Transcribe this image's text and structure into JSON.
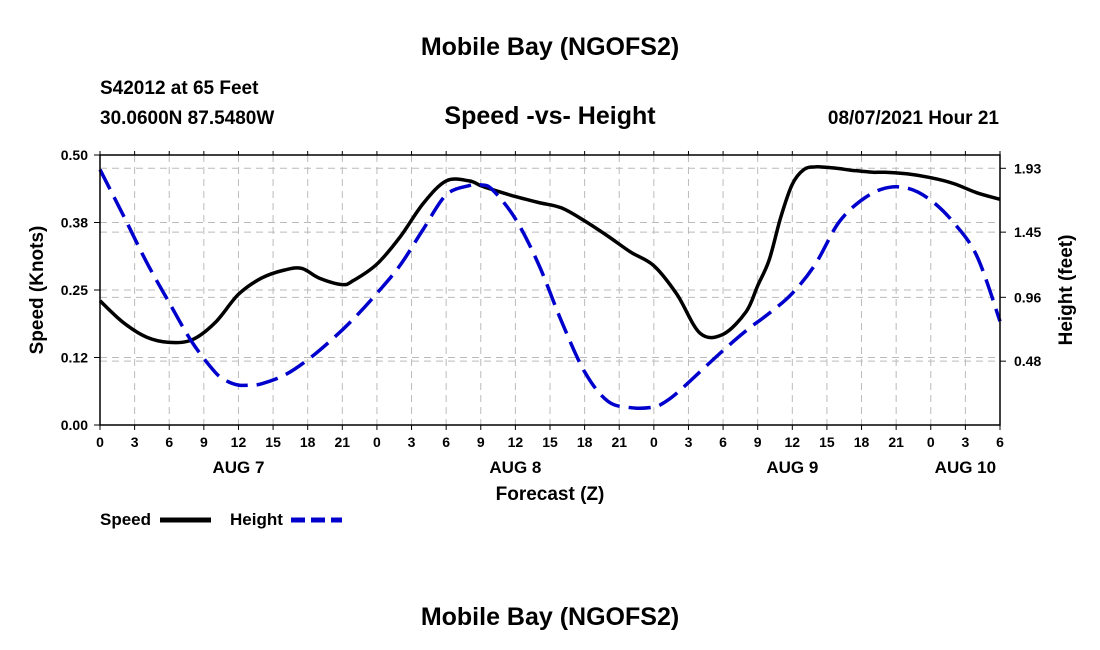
{
  "header": {
    "title": "Mobile Bay (NGOFS2)",
    "station": "S42012 at 65 Feet",
    "coords": "30.0600N  87.5480W",
    "subtitle": "Speed -vs- Height",
    "timestamp": "08/07/2021 Hour 21",
    "footer_title": "Mobile Bay (NGOFS2)"
  },
  "legend": {
    "speed_label": "Speed",
    "height_label": "Height"
  },
  "colors": {
    "speed": "#000000",
    "height": "#0000cc",
    "grid": "#bbbbbb"
  },
  "chart_data": {
    "type": "line",
    "title": "Speed -vs- Height",
    "xlabel": "Forecast (Z)",
    "ylabel": "Speed (Knots)",
    "y2label": "Height (feet)",
    "x_range": [
      0,
      78
    ],
    "ylim": [
      0,
      0.5
    ],
    "y2lim": [
      0,
      2.03
    ],
    "grid": true,
    "x_tick_values": [
      0,
      3,
      6,
      9,
      12,
      15,
      18,
      21,
      24,
      27,
      30,
      33,
      36,
      39,
      42,
      45,
      48,
      51,
      54,
      57,
      60,
      63,
      66,
      69,
      72,
      75,
      78
    ],
    "x_tick_labels": [
      "0",
      "3",
      "6",
      "9",
      "12",
      "15",
      "18",
      "21",
      "0",
      "3",
      "6",
      "9",
      "12",
      "15",
      "18",
      "21",
      "0",
      "3",
      "6",
      "9",
      "12",
      "15",
      "18",
      "21",
      "0",
      "3",
      "6"
    ],
    "date_labels": [
      {
        "x": 12,
        "label": "AUG 7"
      },
      {
        "x": 36,
        "label": "AUG 8"
      },
      {
        "x": 60,
        "label": "AUG 9"
      },
      {
        "x": 75,
        "label": "AUG 10"
      }
    ],
    "y_ticks": [
      {
        "value": 0.0,
        "label": "0.00"
      },
      {
        "value": 0.125,
        "label": "0.12"
      },
      {
        "value": 0.25,
        "label": "0.25"
      },
      {
        "value": 0.375,
        "label": "0.38"
      },
      {
        "value": 0.5,
        "label": "0.50"
      }
    ],
    "y2_ticks": [
      {
        "value": 0.48,
        "label": "0.48"
      },
      {
        "value": 0.96,
        "label": "0.96"
      },
      {
        "value": 1.45,
        "label": "1.45"
      },
      {
        "value": 1.93,
        "label": "1.93"
      }
    ],
    "series": [
      {
        "name": "Speed",
        "axis": "left",
        "style": "solid",
        "x": [
          0,
          2,
          4,
          6,
          8,
          10,
          12,
          14,
          16,
          17.5,
          19,
          21,
          22,
          24,
          26,
          28,
          30,
          32,
          33,
          34,
          36,
          38,
          40,
          42,
          44,
          46,
          48,
          50,
          52,
          54,
          56,
          57,
          58,
          59,
          60,
          61,
          62,
          63,
          64,
          65,
          66,
          67,
          68,
          70,
          72,
          74,
          76,
          78
        ],
        "y": [
          0.23,
          0.19,
          0.163,
          0.153,
          0.158,
          0.19,
          0.242,
          0.272,
          0.287,
          0.29,
          0.272,
          0.26,
          0.268,
          0.298,
          0.348,
          0.41,
          0.452,
          0.452,
          0.443,
          0.436,
          0.423,
          0.412,
          0.402,
          0.378,
          0.35,
          0.32,
          0.295,
          0.242,
          0.17,
          0.168,
          0.21,
          0.258,
          0.306,
          0.385,
          0.446,
          0.473,
          0.478,
          0.477,
          0.475,
          0.472,
          0.47,
          0.468,
          0.468,
          0.465,
          0.458,
          0.447,
          0.43,
          0.418
        ]
      },
      {
        "name": "Height",
        "axis": "right",
        "style": "dashed",
        "x": [
          0,
          2,
          4,
          6,
          8,
          10,
          11,
          12,
          13,
          14,
          16,
          18,
          20,
          22,
          24,
          26,
          28,
          30,
          32,
          33,
          34,
          36,
          38,
          40,
          42,
          44,
          46,
          48,
          49,
          50,
          52,
          54,
          56,
          58,
          60,
          62,
          64,
          66,
          68,
          70,
          72,
          74,
          76,
          78
        ],
        "y": [
          1.92,
          1.58,
          1.23,
          0.92,
          0.62,
          0.395,
          0.33,
          0.3,
          0.3,
          0.31,
          0.375,
          0.49,
          0.635,
          0.8,
          0.99,
          1.2,
          1.47,
          1.73,
          1.8,
          1.805,
          1.77,
          1.55,
          1.21,
          0.78,
          0.4,
          0.18,
          0.13,
          0.135,
          0.175,
          0.24,
          0.4,
          0.56,
          0.71,
          0.84,
          0.99,
          1.21,
          1.52,
          1.69,
          1.78,
          1.78,
          1.69,
          1.52,
          1.27,
          0.78
        ]
      }
    ]
  }
}
